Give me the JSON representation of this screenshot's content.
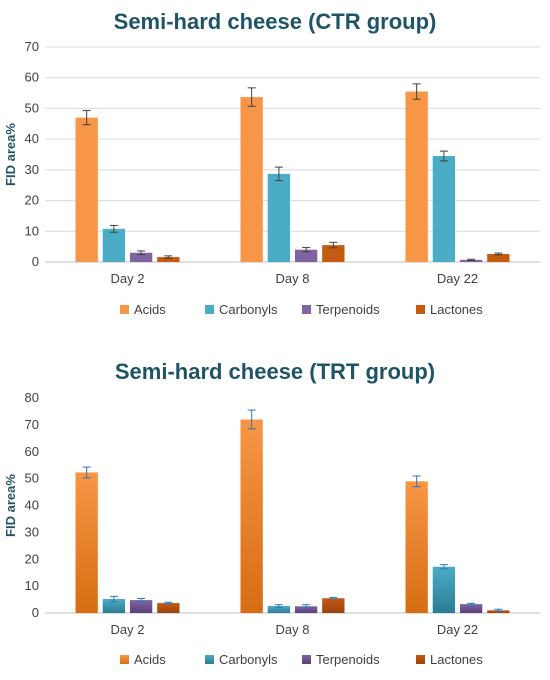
{
  "chart_data": [
    {
      "type": "bar",
      "title": "Semi-hard cheese (CTR group)",
      "xlabel": "",
      "ylabel": "FID area%",
      "ylim": [
        0,
        70
      ],
      "yticks": [
        0,
        10,
        20,
        30,
        40,
        50,
        60,
        70
      ],
      "grid": true,
      "legend_position": "bottom",
      "categories": [
        "Day 2",
        "Day 8",
        "Day 22"
      ],
      "series": [
        {
          "name": "Acids",
          "color": "#f79646",
          "values": [
            47,
            53.7,
            55.5
          ],
          "errors": [
            2.3,
            3.0,
            2.5
          ]
        },
        {
          "name": "Carbonyls",
          "color": "#4bacc6",
          "values": [
            10.8,
            28.7,
            34.5
          ],
          "errors": [
            1.1,
            2.2,
            1.6
          ]
        },
        {
          "name": "Terpenoids",
          "color": "#8064a2",
          "values": [
            3.0,
            4.0,
            0.7
          ],
          "errors": [
            0.6,
            0.7,
            0.2
          ]
        },
        {
          "name": "Lactones",
          "color": "#c55a11",
          "values": [
            1.6,
            5.5,
            2.6
          ],
          "errors": [
            0.4,
            0.9,
            0.3
          ]
        }
      ]
    },
    {
      "type": "bar",
      "title": "Semi-hard cheese (TRT group)",
      "xlabel": "",
      "ylabel": "FID area%",
      "ylim": [
        0,
        80
      ],
      "yticks": [
        0,
        10,
        20,
        30,
        40,
        50,
        60,
        70,
        80
      ],
      "grid": false,
      "legend_position": "bottom",
      "categories": [
        "Day 2",
        "Day 8",
        "Day 22"
      ],
      "series": [
        {
          "name": "Acids",
          "color": "#f79646",
          "values": [
            52.3,
            72,
            49
          ],
          "errors": [
            2.0,
            3.5,
            2.0
          ]
        },
        {
          "name": "Carbonyls",
          "color": "#4bacc6",
          "values": [
            5.2,
            2.6,
            17.2
          ],
          "errors": [
            1.0,
            0.5,
            0.8
          ]
        },
        {
          "name": "Terpenoids",
          "color": "#8064a2",
          "values": [
            4.8,
            2.5,
            3.3
          ],
          "errors": [
            0.6,
            0.6,
            0.3
          ]
        },
        {
          "name": "Lactones",
          "color": "#c55a11",
          "values": [
            3.7,
            5.5,
            1.0
          ],
          "errors": [
            0.3,
            0.3,
            0.4
          ]
        }
      ]
    }
  ]
}
